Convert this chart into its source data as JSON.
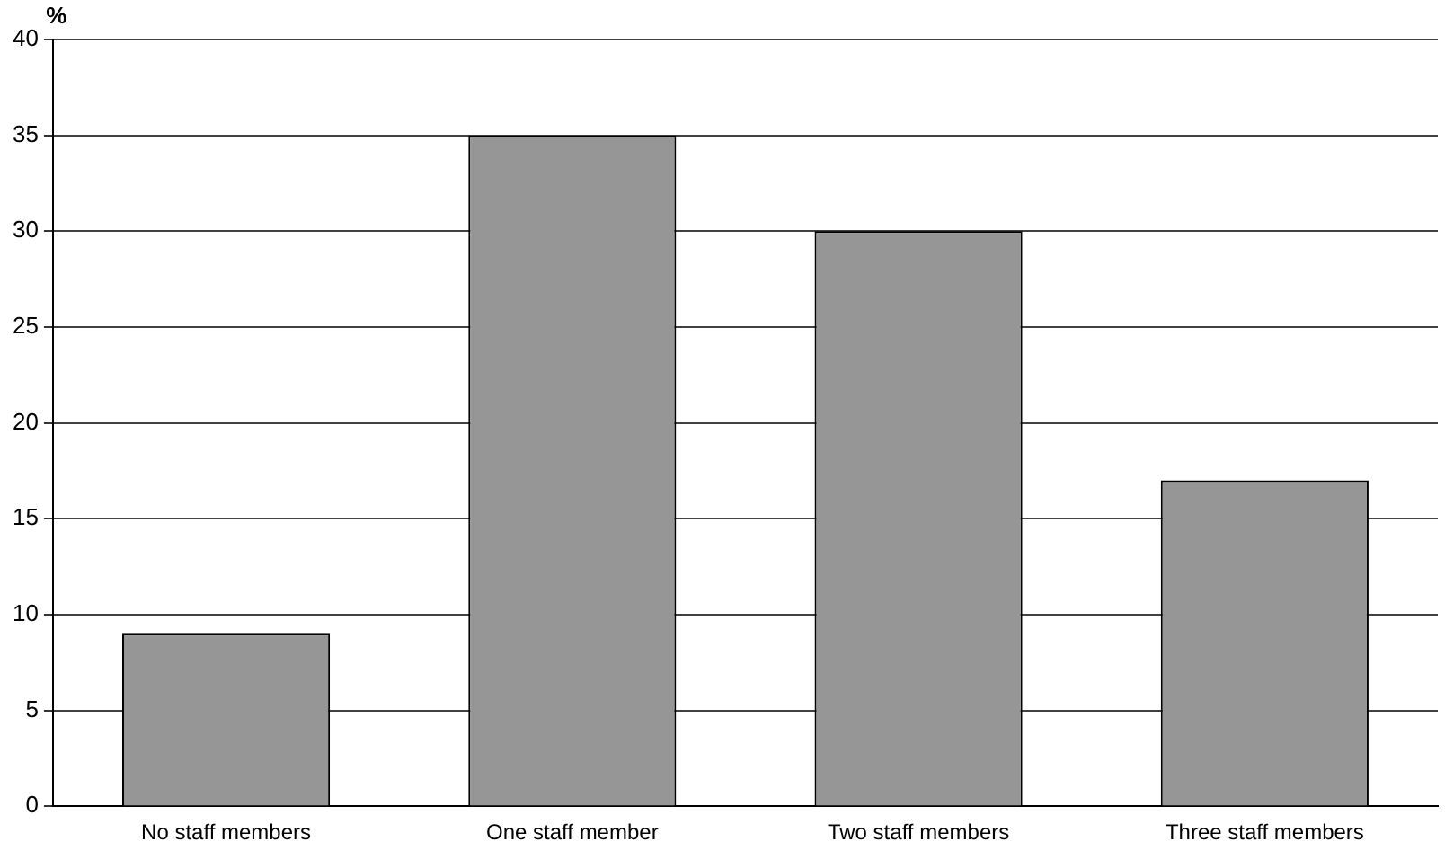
{
  "chart_data": {
    "type": "bar",
    "ylabel": "%",
    "categories": [
      "No staff members",
      "One staff member",
      "Two staff members",
      "Three staff members"
    ],
    "values": [
      9,
      35,
      30,
      17
    ],
    "color": "#969696",
    "ylim": [
      0,
      40
    ],
    "yticks": [
      0,
      5,
      10,
      15,
      20,
      25,
      30,
      35,
      40
    ],
    "grid": "y",
    "legend": false
  }
}
